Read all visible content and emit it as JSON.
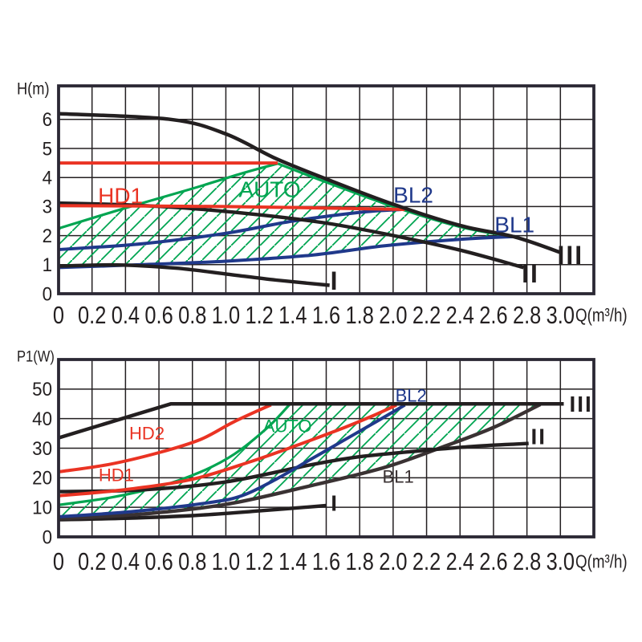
{
  "figure_title": "",
  "colors": {
    "black": "#231f20",
    "red": "#ea3323",
    "green": "#00a551",
    "blue": "#20398b",
    "dark": "#3a3233",
    "frame": "#2b2834",
    "grid": "#231f20",
    "hatch": "#00a551"
  },
  "chart_data": [
    {
      "name": "head-curves",
      "type": "line",
      "title": "",
      "xlabel": "Q(m³/h)",
      "ylabel": "H(m)",
      "xlim": [
        0,
        3.2
      ],
      "ylim": [
        0,
        7.155
      ],
      "grid": true,
      "xticks": [
        "0",
        "0.2",
        "0.4",
        "0.6",
        "0.8",
        "1.0",
        "1.2",
        "1.4",
        "1.6",
        "1.8",
        "2.0",
        "2.2",
        "2.4",
        "2.6",
        "2.8",
        "3.0"
      ],
      "yticks": [
        "0",
        "1",
        "2",
        "3",
        "4",
        "5",
        "6"
      ],
      "series": [
        {
          "name": "AUTO-boundary-rise",
          "color": "green",
          "width": 3.2,
          "points": [
            [
              0,
              2.25
            ],
            [
              0.4,
              2.95
            ],
            [
              0.8,
              3.62
            ],
            [
              1.1,
              4.15
            ],
            [
              1.31,
              4.48
            ]
          ]
        },
        {
          "name": "AUTO-boundary-fall",
          "color": "green",
          "width": 3.2,
          "points": [
            [
              1.31,
              4.48
            ],
            [
              1.6,
              3.84
            ],
            [
              2.0,
              3.0
            ],
            [
              2.4,
              2.3
            ],
            [
              2.73,
              1.95
            ]
          ]
        },
        {
          "name": "BL1",
          "color": "blue",
          "width": 4,
          "points": [
            [
              0,
              0.9
            ],
            [
              0.5,
              1.0
            ],
            [
              1.0,
              1.12
            ],
            [
              1.5,
              1.32
            ],
            [
              1.95,
              1.65
            ],
            [
              2.4,
              1.87
            ],
            [
              2.73,
              1.97
            ]
          ]
        },
        {
          "name": "I",
          "color": "black",
          "width": 4.4,
          "points": [
            [
              0,
              0.95
            ],
            [
              0.35,
              0.99
            ],
            [
              0.7,
              0.88
            ],
            [
              1.0,
              0.68
            ],
            [
              1.3,
              0.47
            ],
            [
              1.62,
              0.29
            ]
          ]
        },
        {
          "name": "BL2",
          "color": "blue",
          "width": 4,
          "points": [
            [
              0,
              1.52
            ],
            [
              0.5,
              1.72
            ],
            [
              1.0,
              2.08
            ],
            [
              1.4,
              2.5
            ],
            [
              1.8,
              2.8
            ],
            [
              2.05,
              2.9
            ]
          ]
        },
        {
          "name": "II",
          "color": "black",
          "width": 4.4,
          "points": [
            [
              0,
              3.12
            ],
            [
              0.4,
              3.06
            ],
            [
              0.8,
              2.93
            ],
            [
              1.23,
              2.7
            ],
            [
              1.6,
              2.43
            ],
            [
              1.95,
              2.06
            ],
            [
              2.4,
              1.5
            ],
            [
              2.78,
              0.9
            ]
          ]
        },
        {
          "name": "HD2",
          "color": "red",
          "width": 4,
          "straight": true,
          "points": [
            [
              0,
              4.5
            ],
            [
              1.31,
              4.5
            ]
          ]
        },
        {
          "name": "HD1",
          "color": "red",
          "width": 4,
          "points": [
            [
              0,
              3.03
            ],
            [
              1.0,
              3.0
            ],
            [
              2.07,
              2.9
            ]
          ]
        },
        {
          "name": "III",
          "color": "black",
          "width": 4.5,
          "points": [
            [
              0,
              6.2
            ],
            [
              0.67,
              6.0
            ],
            [
              1.0,
              5.5
            ],
            [
              1.3,
              4.65
            ],
            [
              1.6,
              3.95
            ],
            [
              2.0,
              3.08
            ],
            [
              2.4,
              2.35
            ],
            [
              2.73,
              1.95
            ],
            [
              3.0,
              1.42
            ]
          ]
        }
      ],
      "region": {
        "name": "AUTO",
        "upper": [
          [
            0,
            2.25
          ],
          [
            0.4,
            2.95
          ],
          [
            0.8,
            3.62
          ],
          [
            1.1,
            4.15
          ],
          [
            1.31,
            4.48
          ],
          [
            1.6,
            3.84
          ],
          [
            2.0,
            3.0
          ],
          [
            2.4,
            2.3
          ],
          [
            2.73,
            1.95
          ]
        ],
        "lower": [
          [
            0,
            0.9
          ],
          [
            0.5,
            1.0
          ],
          [
            1.0,
            1.12
          ],
          [
            1.5,
            1.32
          ],
          [
            1.95,
            1.65
          ],
          [
            2.4,
            1.87
          ],
          [
            2.73,
            1.97
          ]
        ]
      },
      "labels": [
        {
          "text": "HD1",
          "x": 0.37,
          "y": 3.37,
          "color": "red",
          "size": 28
        },
        {
          "text": "AUTO",
          "x": 1.262,
          "y": 3.59,
          "color": "green",
          "size": 28
        },
        {
          "text": "BL2",
          "x": 2.121,
          "y": 3.4,
          "color": "blue",
          "size": 28
        },
        {
          "text": "BL1",
          "x": 2.726,
          "y": 2.376,
          "color": "blue",
          "size": 28
        },
        {
          "text": "I",
          "x": 1.651,
          "y": 0.44,
          "color": "black",
          "size": 32,
          "bold": true
        },
        {
          "text": "II",
          "x": 2.821,
          "y": 0.69,
          "color": "black",
          "size": 32,
          "bold": true
        },
        {
          "text": "III",
          "x": 3.06,
          "y": 1.33,
          "color": "black",
          "size": 32,
          "bold": true
        }
      ]
    },
    {
      "name": "power-curves",
      "type": "line",
      "title": "",
      "xlabel": "Q(m³/h)",
      "ylabel": "P1(W)",
      "xlim": [
        0,
        3.2
      ],
      "ylim": [
        0,
        60.0
      ],
      "grid": true,
      "xticks": [
        "0",
        "0.2",
        "0.4",
        "0.6",
        "0.8",
        "1.0",
        "1.2",
        "1.4",
        "1.6",
        "1.8",
        "2.0",
        "2.2",
        "2.4",
        "2.6",
        "2.8",
        "3.0"
      ],
      "yticks": [
        "0",
        "10",
        "20",
        "30",
        "40",
        "50"
      ],
      "series": [
        {
          "name": "AUTO-boundary-rise",
          "color": "green",
          "width": 3.2,
          "points": [
            [
              0,
              10.8
            ],
            [
              0.3,
              13.2
            ],
            [
              0.6,
              17
            ],
            [
              0.85,
              22
            ],
            [
              1.05,
              28
            ],
            [
              1.25,
              37
            ],
            [
              1.38,
              44.7
            ]
          ]
        },
        {
          "name": "I",
          "color": "black",
          "width": 4.4,
          "points": [
            [
              0,
              5.8
            ],
            [
              0.4,
              6.3
            ],
            [
              0.8,
              7.2
            ],
            [
              1.2,
              8.8
            ],
            [
              1.6,
              10.6
            ]
          ]
        },
        {
          "name": "BL1",
          "color": "dark",
          "width": 4.4,
          "points": [
            [
              0,
              6.1
            ],
            [
              0.5,
              7.7
            ],
            [
              1.0,
              11
            ],
            [
              1.5,
              17.2
            ],
            [
              1.95,
              23.5
            ],
            [
              2.3,
              30.5
            ],
            [
              2.6,
              37
            ],
            [
              2.88,
              44.8
            ]
          ]
        },
        {
          "name": "II",
          "color": "black",
          "width": 4.4,
          "points": [
            [
              0,
              15.3
            ],
            [
              0.5,
              15.9
            ],
            [
              1.0,
              18.6
            ],
            [
              1.5,
              24.3
            ],
            [
              1.77,
              26.9
            ],
            [
              2.1,
              28.8
            ],
            [
              2.5,
              30.7
            ],
            [
              2.81,
              31.6
            ]
          ]
        },
        {
          "name": "BL2",
          "color": "blue",
          "width": 4,
          "points": [
            [
              0,
              6.8
            ],
            [
              0.45,
              8.6
            ],
            [
              0.9,
              11.6
            ],
            [
              1.1,
              14
            ],
            [
              1.3,
              19.5
            ],
            [
              1.5,
              26
            ],
            [
              1.7,
              32.5
            ],
            [
              1.9,
              39
            ],
            [
              2.07,
              44.6
            ]
          ]
        },
        {
          "name": "HD1",
          "color": "red",
          "width": 4,
          "points": [
            [
              0,
              13.9
            ],
            [
              0.4,
              16
            ],
            [
              0.8,
              19.5
            ],
            [
              1.15,
              25.5
            ],
            [
              1.45,
              31.5
            ],
            [
              1.7,
              36.8
            ],
            [
              1.88,
              41
            ],
            [
              2.02,
              44.6
            ]
          ]
        },
        {
          "name": "HD2",
          "color": "red",
          "width": 4,
          "points": [
            [
              0,
              22
            ],
            [
              0.3,
              24.5
            ],
            [
              0.6,
              28.5
            ],
            [
              0.85,
              33
            ],
            [
              1.05,
              39
            ],
            [
              1.27,
              44.7
            ]
          ]
        },
        {
          "name": "III",
          "color": "black",
          "width": 4.5,
          "straight": true,
          "points": [
            [
              0,
              33.5
            ],
            [
              0.67,
              45
            ],
            [
              3.02,
              45
            ]
          ]
        }
      ],
      "region": {
        "name": "AUTO",
        "upper": [
          [
            0,
            10.8
          ],
          [
            0.3,
            13.2
          ],
          [
            0.6,
            17
          ],
          [
            0.85,
            22
          ],
          [
            1.05,
            28
          ],
          [
            1.25,
            37
          ],
          [
            1.38,
            44.7
          ],
          [
            2.88,
            44.8
          ]
        ],
        "lower": [
          [
            0,
            6.1
          ],
          [
            0.5,
            7.7
          ],
          [
            1.0,
            11
          ],
          [
            1.5,
            17.2
          ],
          [
            1.95,
            23.5
          ],
          [
            2.3,
            30.5
          ],
          [
            2.6,
            37
          ],
          [
            2.88,
            44.8
          ]
        ]
      },
      "labels": [
        {
          "text": "HD2",
          "x": 0.528,
          "y": 35.0,
          "color": "red",
          "size": 22
        },
        {
          "text": "HD1",
          "x": 0.345,
          "y": 20.9,
          "color": "red",
          "size": 22
        },
        {
          "text": "AUTO",
          "x": 1.368,
          "y": 37.4,
          "color": "green",
          "size": 22
        },
        {
          "text": "BL2",
          "x": 2.107,
          "y": 47.8,
          "color": "blue",
          "size": 22
        },
        {
          "text": "BL1",
          "x": 2.03,
          "y": 20.4,
          "color": "dark",
          "size": 22
        },
        {
          "text": "I",
          "x": 1.651,
          "y": 11.4,
          "color": "black",
          "size": 28,
          "bold": true
        },
        {
          "text": "II",
          "x": 2.87,
          "y": 33.9,
          "color": "black",
          "size": 28,
          "bold": true
        },
        {
          "text": "III",
          "x": 3.124,
          "y": 45.0,
          "color": "black",
          "size": 28,
          "bold": true
        }
      ]
    }
  ]
}
